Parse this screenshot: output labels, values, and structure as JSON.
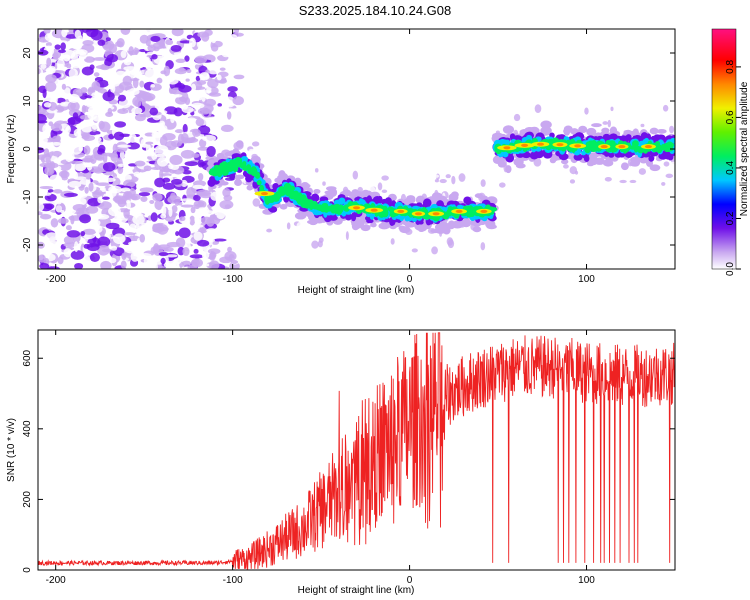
{
  "title": "S233.2025.184.10.24.G08",
  "chart_data": [
    {
      "type": "heatmap",
      "xlabel": "Height of straight line (km)",
      "ylabel": "Frequency (Hz)",
      "xlim": [
        -210,
        150
      ],
      "ylim": [
        -25,
        25
      ],
      "xticks": [
        -200,
        -100,
        0,
        100
      ],
      "yticks": [
        -20,
        -10,
        0,
        10,
        20
      ],
      "colorbar": {
        "label": "Normalized spectral amplitude",
        "range": [
          0,
          0.95
        ],
        "ticks": [
          0.0,
          0.2,
          0.4,
          0.6,
          0.8
        ]
      },
      "dominant_frequency": {
        "x": [
          -112,
          -100,
          -95,
          -87,
          -80,
          -75,
          -70,
          -63,
          -55,
          -45,
          -35,
          -25,
          -15,
          -5,
          5,
          15,
          25,
          35,
          45,
          50,
          60,
          70,
          80,
          90,
          100,
          110,
          120,
          130,
          140,
          150
        ],
        "y": [
          -5,
          -3.5,
          -3,
          -5,
          -11,
          -10,
          -8,
          -10,
          -12,
          -12.5,
          -12,
          -12.5,
          -13,
          -13,
          -13.5,
          -13.5,
          -13,
          -13,
          -13,
          0,
          0.5,
          1,
          1,
          0.8,
          0.5,
          0.5,
          0.5,
          0.5,
          0.5,
          0.5
        ]
      }
    },
    {
      "type": "line",
      "xlabel": "Height of straight line (km)",
      "ylabel": "SNR (10 * v/v)",
      "xlim": [
        -210,
        150
      ],
      "ylim": [
        0,
        680
      ],
      "xticks": [
        -200,
        -100,
        0,
        100
      ],
      "yticks": [
        0,
        200,
        400,
        600
      ],
      "color": "#ee2222",
      "trend": {
        "x": [
          -210,
          -150,
          -110,
          -100,
          -90,
          -80,
          -70,
          -60,
          -50,
          -40,
          -30,
          -20,
          -10,
          0,
          10,
          20,
          30,
          40,
          50,
          60,
          70,
          80,
          90,
          100,
          110,
          120,
          130,
          140,
          150
        ],
        "y": [
          20,
          20,
          20,
          25,
          35,
          60,
          90,
          120,
          170,
          220,
          270,
          320,
          370,
          410,
          450,
          490,
          520,
          545,
          560,
          575,
          575,
          575,
          570,
          560,
          555,
          550,
          550,
          555,
          555
        ]
      },
      "dropouts": [
        47,
        56,
        84,
        87,
        90,
        94,
        99,
        104,
        108,
        110,
        113,
        116,
        119,
        124,
        127,
        129,
        147
      ]
    }
  ]
}
